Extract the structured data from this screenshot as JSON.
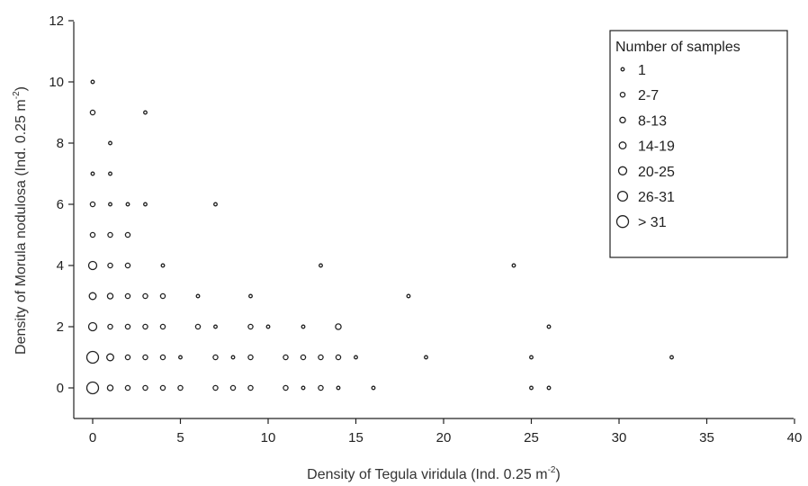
{
  "chart_data": {
    "type": "scatter",
    "xlabel_main": "Density of Tegula viridula (Ind. 0.25 m",
    "xlabel_sup": "-2",
    "xlabel_end": ")",
    "ylabel_main": "Density of Morula nodulosa (Ind. 0.25 m",
    "ylabel_sup": "-2",
    "ylabel_end": ")",
    "xlim": [
      -1,
      40
    ],
    "ylim": [
      -1.5,
      12
    ],
    "xticks": [
      0,
      5,
      10,
      15,
      20,
      25,
      30,
      35,
      40
    ],
    "yticks": [
      0,
      2,
      4,
      6,
      8,
      10,
      12
    ],
    "grid": false,
    "legend": {
      "title": "Number of samples",
      "placement": "top-right",
      "classes": [
        "1",
        "2-7",
        "8-13",
        "14-19",
        "20-25",
        "26-31",
        "> 31"
      ]
    },
    "points": [
      {
        "x": 0,
        "y": 10,
        "c": 0
      },
      {
        "x": 0,
        "y": 9,
        "c": 1
      },
      {
        "x": 0,
        "y": 7,
        "c": 0
      },
      {
        "x": 0,
        "y": 6,
        "c": 1
      },
      {
        "x": 0,
        "y": 5,
        "c": 1
      },
      {
        "x": 0,
        "y": 4,
        "c": 4
      },
      {
        "x": 0,
        "y": 3,
        "c": 3
      },
      {
        "x": 0,
        "y": 2,
        "c": 4
      },
      {
        "x": 0,
        "y": 1,
        "c": 6
      },
      {
        "x": 0,
        "y": 0,
        "c": 6
      },
      {
        "x": 1,
        "y": 8,
        "c": 0
      },
      {
        "x": 1,
        "y": 7,
        "c": 0
      },
      {
        "x": 1,
        "y": 6,
        "c": 0
      },
      {
        "x": 1,
        "y": 5,
        "c": 1
      },
      {
        "x": 1,
        "y": 4,
        "c": 1
      },
      {
        "x": 1,
        "y": 3,
        "c": 2
      },
      {
        "x": 1,
        "y": 2,
        "c": 1
      },
      {
        "x": 1,
        "y": 1,
        "c": 3
      },
      {
        "x": 1,
        "y": 0,
        "c": 2
      },
      {
        "x": 2,
        "y": 6,
        "c": 0
      },
      {
        "x": 2,
        "y": 5,
        "c": 1
      },
      {
        "x": 2,
        "y": 4,
        "c": 1
      },
      {
        "x": 2,
        "y": 3,
        "c": 1
      },
      {
        "x": 2,
        "y": 2,
        "c": 1
      },
      {
        "x": 2,
        "y": 1,
        "c": 1
      },
      {
        "x": 2,
        "y": 0,
        "c": 1
      },
      {
        "x": 3,
        "y": 9,
        "c": 0
      },
      {
        "x": 3,
        "y": 6,
        "c": 0
      },
      {
        "x": 3,
        "y": 3,
        "c": 1
      },
      {
        "x": 3,
        "y": 2,
        "c": 1
      },
      {
        "x": 3,
        "y": 1,
        "c": 1
      },
      {
        "x": 3,
        "y": 0,
        "c": 1
      },
      {
        "x": 4,
        "y": 4,
        "c": 0
      },
      {
        "x": 4,
        "y": 3,
        "c": 1
      },
      {
        "x": 4,
        "y": 2,
        "c": 1
      },
      {
        "x": 4,
        "y": 1,
        "c": 1
      },
      {
        "x": 4,
        "y": 0,
        "c": 1
      },
      {
        "x": 5,
        "y": 1,
        "c": 0
      },
      {
        "x": 5,
        "y": 0,
        "c": 1
      },
      {
        "x": 6,
        "y": 3,
        "c": 0
      },
      {
        "x": 6,
        "y": 2,
        "c": 1
      },
      {
        "x": 7,
        "y": 6,
        "c": 0
      },
      {
        "x": 7,
        "y": 2,
        "c": 0
      },
      {
        "x": 7,
        "y": 1,
        "c": 1
      },
      {
        "x": 7,
        "y": 0,
        "c": 1
      },
      {
        "x": 8,
        "y": 1,
        "c": 0
      },
      {
        "x": 8,
        "y": 0,
        "c": 1
      },
      {
        "x": 9,
        "y": 3,
        "c": 0
      },
      {
        "x": 9,
        "y": 2,
        "c": 1
      },
      {
        "x": 9,
        "y": 1,
        "c": 1
      },
      {
        "x": 9,
        "y": 0,
        "c": 1
      },
      {
        "x": 10,
        "y": 2,
        "c": 0
      },
      {
        "x": 11,
        "y": 1,
        "c": 1
      },
      {
        "x": 11,
        "y": 0,
        "c": 1
      },
      {
        "x": 12,
        "y": 2,
        "c": 0
      },
      {
        "x": 12,
        "y": 1,
        "c": 1
      },
      {
        "x": 12,
        "y": 0,
        "c": 0
      },
      {
        "x": 13,
        "y": 4,
        "c": 0
      },
      {
        "x": 13,
        "y": 1,
        "c": 1
      },
      {
        "x": 13,
        "y": 0,
        "c": 1
      },
      {
        "x": 14,
        "y": 2,
        "c": 2
      },
      {
        "x": 14,
        "y": 1,
        "c": 1
      },
      {
        "x": 14,
        "y": 0,
        "c": 0
      },
      {
        "x": 15,
        "y": 1,
        "c": 0
      },
      {
        "x": 16,
        "y": 0,
        "c": 0
      },
      {
        "x": 18,
        "y": 3,
        "c": 0
      },
      {
        "x": 19,
        "y": 1,
        "c": 0
      },
      {
        "x": 24,
        "y": 4,
        "c": 0
      },
      {
        "x": 25,
        "y": 1,
        "c": 0
      },
      {
        "x": 25,
        "y": 0,
        "c": 0
      },
      {
        "x": 26,
        "y": 2,
        "c": 0
      },
      {
        "x": 26,
        "y": 0,
        "c": 0
      },
      {
        "x": 33,
        "y": 1,
        "c": 0
      }
    ]
  }
}
